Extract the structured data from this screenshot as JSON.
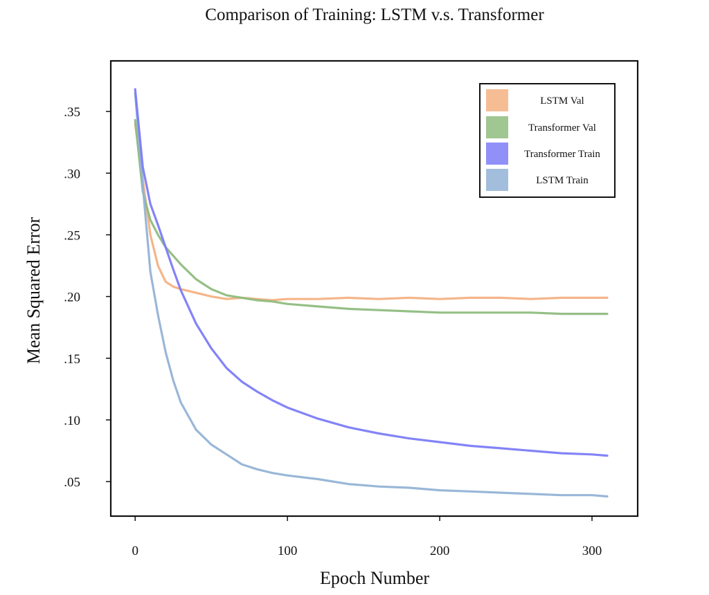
{
  "chart_data": {
    "type": "line",
    "title": "Comparison of Training: LSTM v.s. Transformer",
    "xlabel": "Epoch Number",
    "ylabel": "Mean Squared Error",
    "xlim": [
      -16,
      330
    ],
    "ylim": [
      0.022,
      0.391
    ],
    "x_ticks": [
      0,
      100,
      200,
      300
    ],
    "x_tick_labels": [
      "0",
      "100",
      "200",
      "300"
    ],
    "y_ticks": [
      0.05,
      0.1,
      0.15,
      0.2,
      0.25,
      0.3,
      0.35
    ],
    "y_tick_labels": [
      ".05",
      ".10",
      ".15",
      ".20",
      ".25",
      ".30",
      ".35"
    ],
    "grid": false,
    "legend_position": "top-right",
    "x": [
      0,
      5,
      10,
      15,
      20,
      25,
      30,
      40,
      50,
      60,
      70,
      80,
      90,
      100,
      120,
      140,
      160,
      180,
      200,
      220,
      240,
      260,
      280,
      300,
      310
    ],
    "series": [
      {
        "name": "LSTM Val",
        "color": "#f4b183",
        "values": [
          0.34,
          0.295,
          0.25,
          0.225,
          0.212,
          0.208,
          0.206,
          0.203,
          0.2,
          0.198,
          0.199,
          0.198,
          0.197,
          0.198,
          0.198,
          0.199,
          0.198,
          0.199,
          0.198,
          0.199,
          0.199,
          0.198,
          0.199,
          0.199,
          0.199
        ]
      },
      {
        "name": "Transformer Val",
        "color": "#8fbc7f",
        "values": [
          0.343,
          0.285,
          0.262,
          0.25,
          0.24,
          0.233,
          0.226,
          0.214,
          0.206,
          0.201,
          0.199,
          0.197,
          0.196,
          0.194,
          0.192,
          0.19,
          0.189,
          0.188,
          0.187,
          0.187,
          0.187,
          0.187,
          0.186,
          0.186,
          0.186
        ]
      },
      {
        "name": "Transformer Train",
        "color": "#7c7cf7",
        "values": [
          0.368,
          0.305,
          0.275,
          0.258,
          0.24,
          0.222,
          0.205,
          0.178,
          0.158,
          0.142,
          0.131,
          0.123,
          0.116,
          0.11,
          0.101,
          0.094,
          0.089,
          0.085,
          0.082,
          0.079,
          0.077,
          0.075,
          0.073,
          0.072,
          0.071
        ]
      },
      {
        "name": "LSTM Train",
        "color": "#93b3d6",
        "values": [
          0.365,
          0.29,
          0.22,
          0.185,
          0.155,
          0.132,
          0.114,
          0.092,
          0.08,
          0.072,
          0.064,
          0.06,
          0.057,
          0.055,
          0.052,
          0.048,
          0.046,
          0.045,
          0.043,
          0.042,
          0.041,
          0.04,
          0.039,
          0.039,
          0.038
        ]
      }
    ]
  }
}
